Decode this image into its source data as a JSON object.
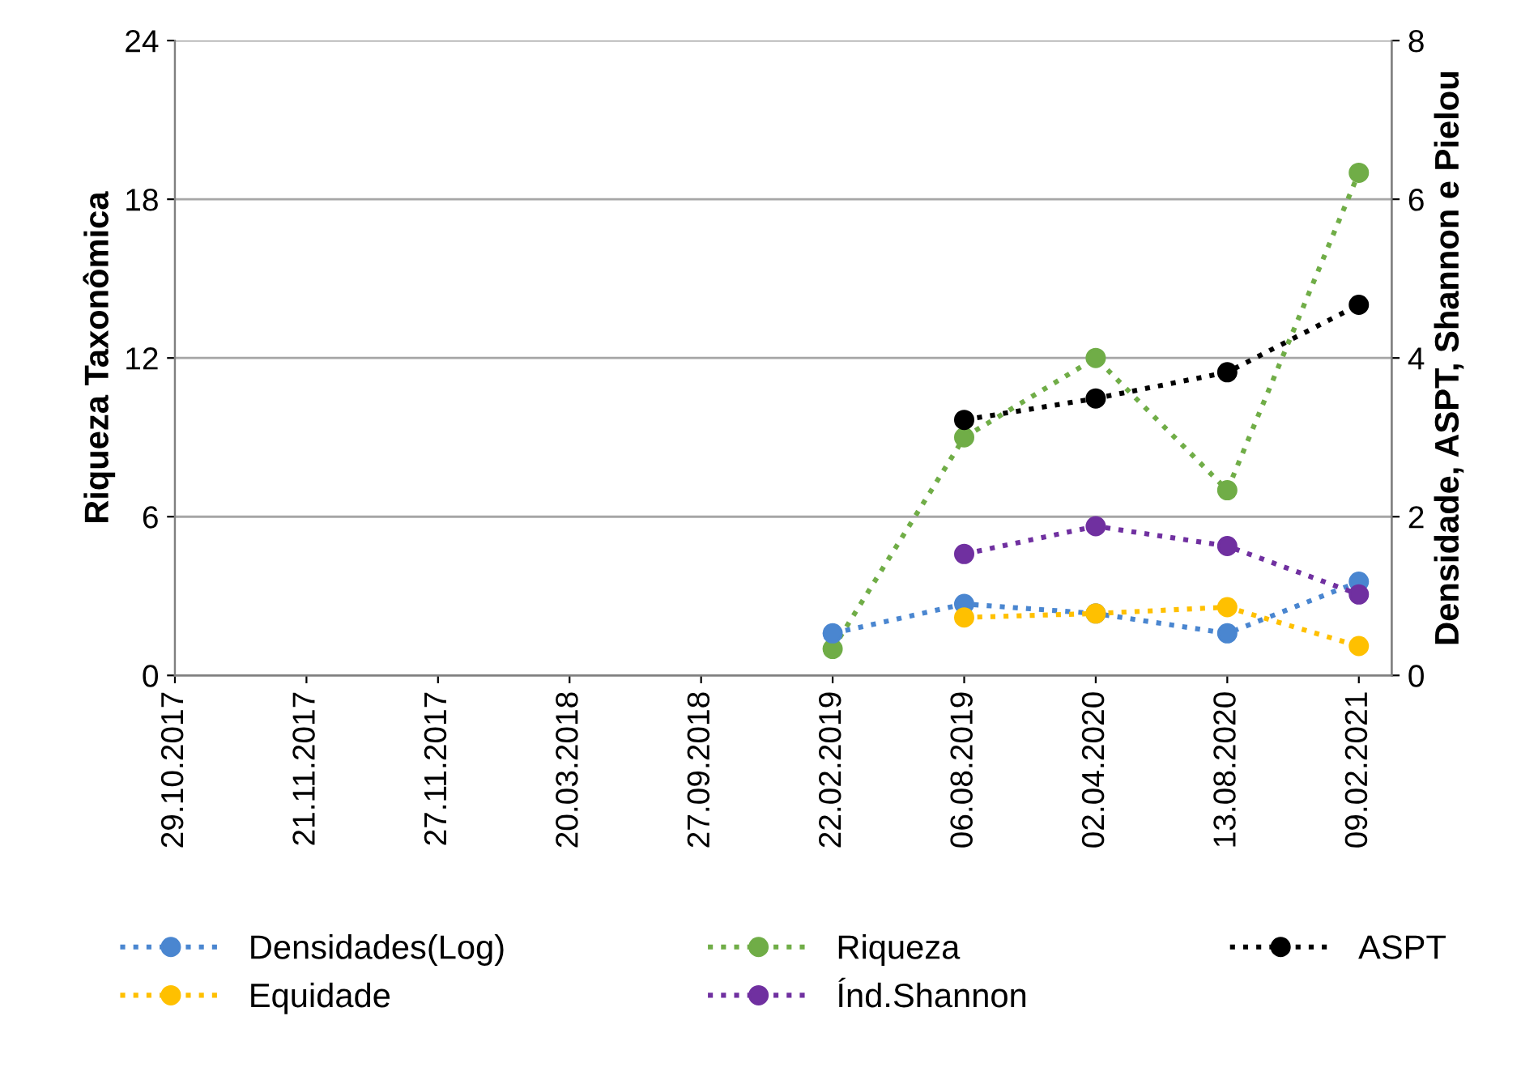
{
  "chart_data": {
    "type": "line",
    "ylabel": "Riqueza Taxonômica",
    "y2label": "Densidade, ASPT, Shannon e Pielou",
    "categories": [
      "29.10.2017",
      "21.11.2017",
      "27.11.2017",
      "20.03.2018",
      "27.09.2018",
      "22.02.2019",
      "06.08.2019",
      "02.04.2020",
      "13.08.2020",
      "09.02.2021"
    ],
    "series": [
      {
        "name": "Densidades(Log)",
        "color": "#4a86d0",
        "axis": "y2",
        "values": [
          null,
          null,
          null,
          null,
          null,
          0.53,
          0.9,
          0.78,
          0.53,
          1.18
        ]
      },
      {
        "name": "Riqueza",
        "color": "#70ad47",
        "values": [
          null,
          null,
          null,
          null,
          null,
          1,
          9,
          12,
          7,
          19
        ]
      },
      {
        "name": "ASPT",
        "color": "#000000",
        "axis": "y2",
        "values": [
          null,
          null,
          null,
          null,
          null,
          null,
          3.22,
          3.49,
          3.82,
          4.67
        ]
      },
      {
        "name": "Equidade",
        "color": "#ffc000",
        "axis": "y2",
        "values": [
          null,
          null,
          null,
          null,
          null,
          null,
          0.73,
          0.78,
          0.86,
          0.37
        ]
      },
      {
        "name": "Índ.Shannon",
        "color": "#7030a0",
        "axis": "y2",
        "values": [
          null,
          null,
          null,
          null,
          null,
          null,
          1.53,
          1.88,
          1.63,
          1.02
        ]
      }
    ],
    "ylim": [
      0,
      24
    ],
    "yticks": [
      0,
      6,
      12,
      18,
      24
    ],
    "y2lim": [
      0,
      8
    ],
    "y2ticks": [
      0,
      2,
      4,
      6,
      8
    ],
    "grid": "y",
    "legend": "bottom",
    "marker": "circle",
    "line_style": "dotted"
  }
}
